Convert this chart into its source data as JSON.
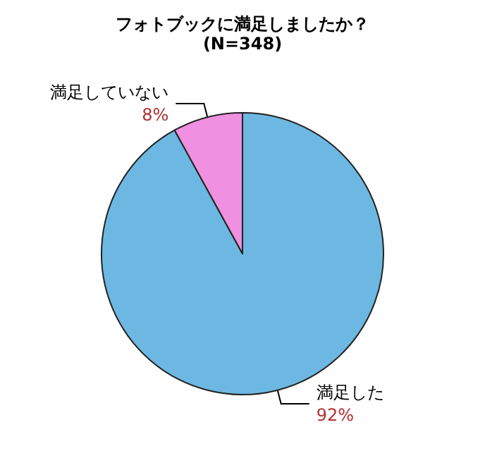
{
  "chart_data": {
    "type": "pie",
    "title": "フォトブックに満足しましたか？",
    "subtitle": "(N=348)",
    "categories": [
      "満足した",
      "満足していない"
    ],
    "values": [
      92,
      8
    ],
    "value_labels": [
      "92%",
      "8%"
    ],
    "colors": [
      "#6cb8e2",
      "#f090e0"
    ],
    "legend": false
  }
}
